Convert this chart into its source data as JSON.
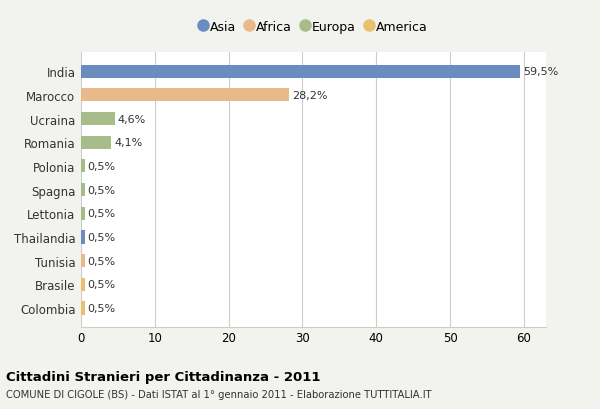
{
  "categories": [
    "India",
    "Marocco",
    "Ucraina",
    "Romania",
    "Polonia",
    "Spagna",
    "Lettonia",
    "Thailandia",
    "Tunisia",
    "Brasile",
    "Colombia"
  ],
  "values": [
    59.5,
    28.2,
    4.6,
    4.1,
    0.5,
    0.5,
    0.5,
    0.5,
    0.5,
    0.5,
    0.5
  ],
  "labels": [
    "59,5%",
    "28,2%",
    "4,6%",
    "4,1%",
    "0,5%",
    "0,5%",
    "0,5%",
    "0,5%",
    "0,5%",
    "0,5%",
    "0,5%"
  ],
  "colors": [
    "#6b8cbf",
    "#e8b98a",
    "#a8bc8a",
    "#a8bc8a",
    "#a8bc8a",
    "#a8bc8a",
    "#a8bc8a",
    "#6b8cbf",
    "#e8b98a",
    "#e8c070",
    "#e8c070"
  ],
  "legend": [
    {
      "label": "Asia",
      "color": "#6b8cbf"
    },
    {
      "label": "Africa",
      "color": "#e8b98a"
    },
    {
      "label": "Europa",
      "color": "#a8bc8a"
    },
    {
      "label": "America",
      "color": "#e8c070"
    }
  ],
  "xlim": [
    0,
    63
  ],
  "xticks": [
    0,
    10,
    20,
    30,
    40,
    50,
    60
  ],
  "title": "Cittadini Stranieri per Cittadinanza - 2011",
  "subtitle": "COMUNE DI CIGOLE (BS) - Dati ISTAT al 1° gennaio 2011 - Elaborazione TUTTITALIA.IT",
  "background_color": "#f2f2ee",
  "bar_bg_color": "#ffffff",
  "grid_color": "#cccccc",
  "text_color": "#333333"
}
